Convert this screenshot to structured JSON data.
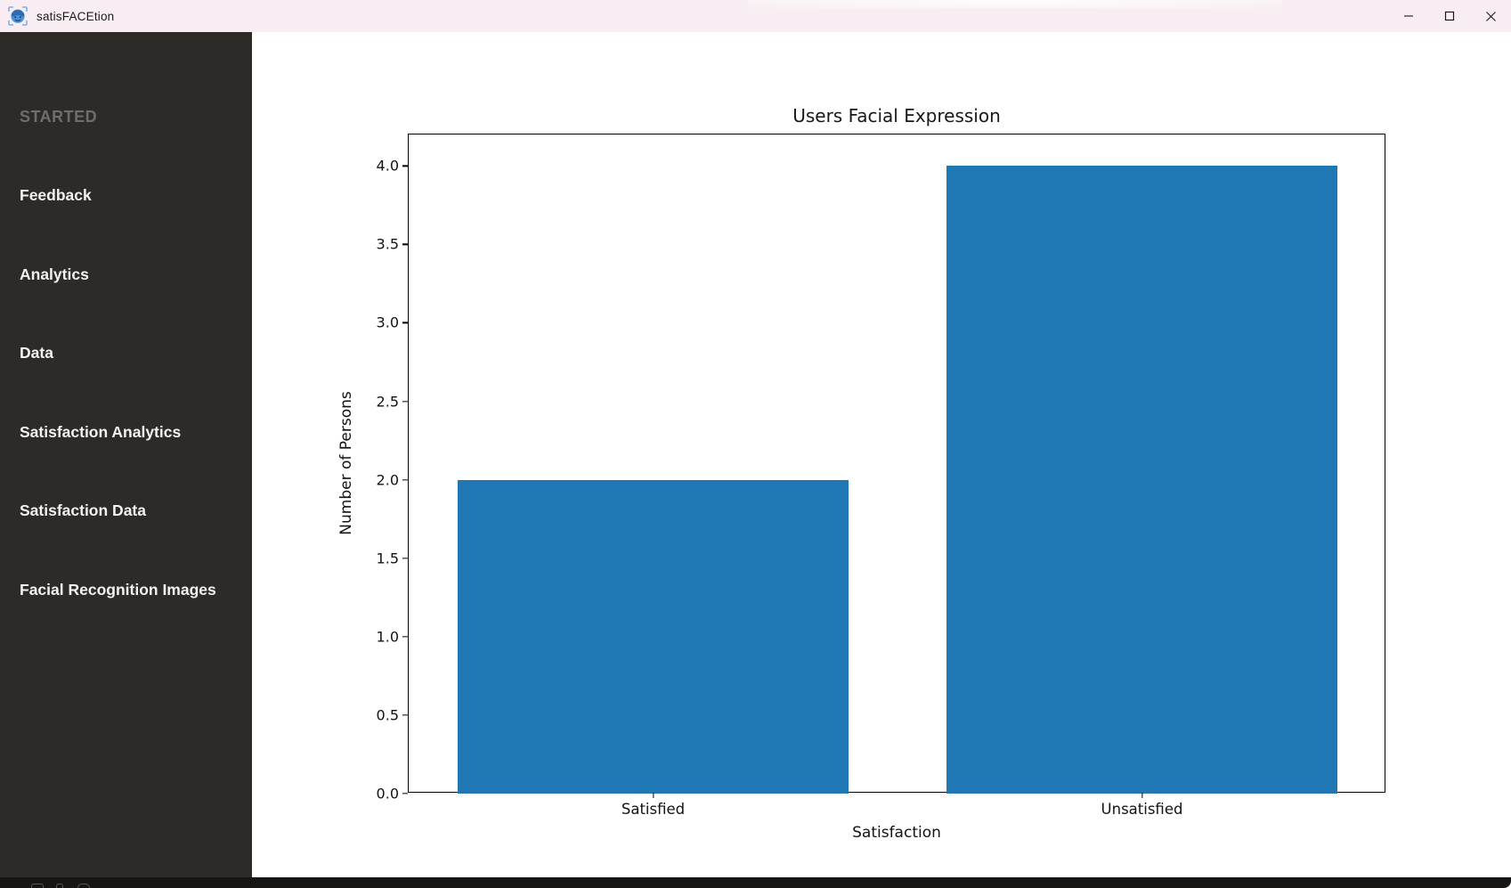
{
  "window": {
    "title": "satisFACEtion",
    "controls": [
      {
        "name": "minimize",
        "glyph": "minimize"
      },
      {
        "name": "maximize",
        "glyph": "maximize"
      },
      {
        "name": "close",
        "glyph": "close"
      }
    ]
  },
  "sidebar": {
    "section_header": "STARTED",
    "items": [
      {
        "label": "Feedback"
      },
      {
        "label": "Analytics"
      },
      {
        "label": "Data"
      },
      {
        "label": "Satisfaction Analytics"
      },
      {
        "label": "Satisfaction Data"
      },
      {
        "label": "Facial Recognition Images"
      }
    ]
  },
  "chart_data": {
    "type": "bar",
    "title": "Users Facial Expression",
    "categories": [
      "Satisfied",
      "Unsatisfied"
    ],
    "values": [
      2,
      4
    ],
    "xlabel": "Satisfaction",
    "ylabel": "Number of Persons",
    "ylim": [
      0,
      4.2
    ],
    "yticks": [
      0.0,
      0.5,
      1.0,
      1.5,
      2.0,
      2.5,
      3.0,
      3.5,
      4.0
    ],
    "bar_color": "#1f77b4",
    "bar_width_fraction": 0.8,
    "grid": false,
    "legend": null
  },
  "colors": {
    "titlebar_bg": "#f8edf2",
    "sidebar_bg": "#2d2a28",
    "bar_blue": "#1f77b4",
    "bottom_strip": "#181615",
    "icon_blue": "#4e8fd7",
    "icon_bracket_blue": "#8ab4f0"
  }
}
